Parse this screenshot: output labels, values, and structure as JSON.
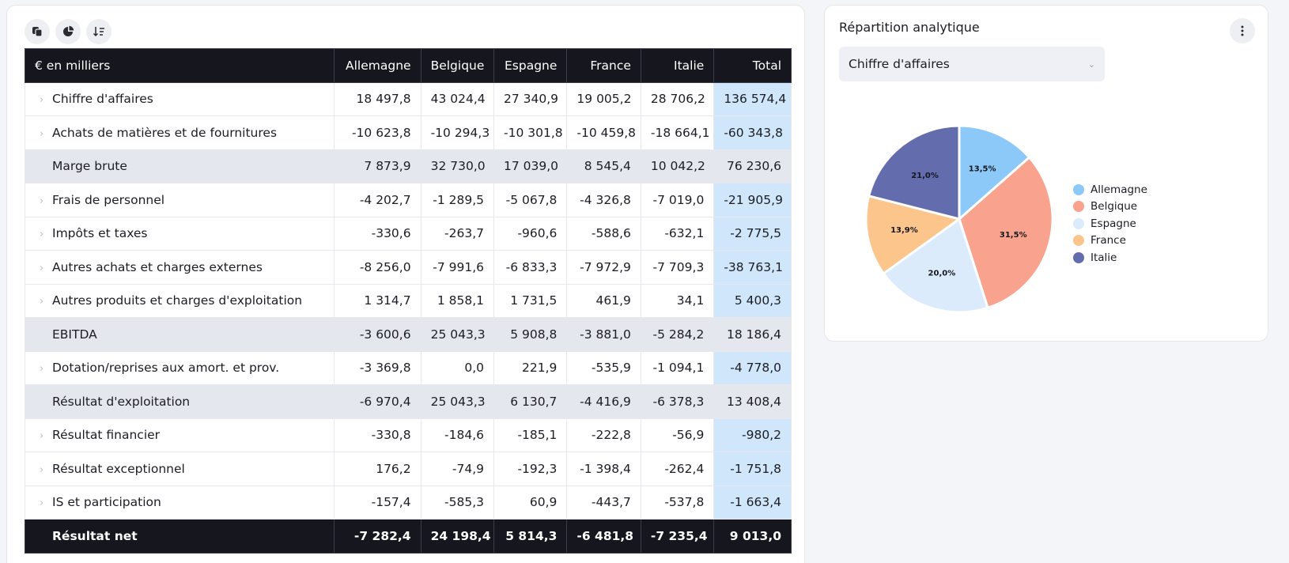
{
  "toolbar": {
    "icons": [
      "copy-icon",
      "pie-chart-icon",
      "sort-icon"
    ]
  },
  "table": {
    "header_label": "€ en milliers",
    "columns": [
      "Allemagne",
      "Belgique",
      "Espagne",
      "France",
      "Italie",
      "Total"
    ],
    "rows": [
      {
        "label": "Chiffre d'affaires",
        "kind": "row",
        "values": [
          "18 497,8",
          "43 024,4",
          "27 340,9",
          "19 005,2",
          "28 706,2",
          "136 574,4"
        ]
      },
      {
        "label": "Achats de matières et de fournitures",
        "kind": "row",
        "values": [
          "-10 623,8",
          "-10 294,3",
          "-10 301,8",
          "-10 459,8",
          "-18 664,1",
          "-60 343,8"
        ]
      },
      {
        "label": "Marge brute",
        "kind": "subtotal",
        "values": [
          "7 873,9",
          "32 730,0",
          "17 039,0",
          "8 545,4",
          "10 042,2",
          "76 230,6"
        ]
      },
      {
        "label": "Frais de personnel",
        "kind": "row",
        "values": [
          "-4 202,7",
          "-1 289,5",
          "-5 067,8",
          "-4 326,8",
          "-7 019,0",
          "-21 905,9"
        ]
      },
      {
        "label": "Impôts et taxes",
        "kind": "row",
        "values": [
          "-330,6",
          "-263,7",
          "-960,6",
          "-588,6",
          "-632,1",
          "-2 775,5"
        ]
      },
      {
        "label": "Autres achats et charges externes",
        "kind": "row",
        "values": [
          "-8 256,0",
          "-7 991,6",
          "-6 833,3",
          "-7 972,9",
          "-7 709,3",
          "-38 763,1"
        ]
      },
      {
        "label": "Autres produits et charges d'exploitation",
        "kind": "row",
        "values": [
          "1 314,7",
          "1 858,1",
          "1 731,5",
          "461,9",
          "34,1",
          "5 400,3"
        ]
      },
      {
        "label": "EBITDA",
        "kind": "subtotal",
        "values": [
          "-3 600,6",
          "25 043,3",
          "5 908,8",
          "-3 881,0",
          "-5 284,2",
          "18 186,4"
        ]
      },
      {
        "label": "Dotation/reprises aux amort. et prov.",
        "kind": "row",
        "values": [
          "-3 369,8",
          "0,0",
          "221,9",
          "-535,9",
          "-1 094,1",
          "-4 778,0"
        ]
      },
      {
        "label": "Résultat d'exploitation",
        "kind": "subtotal",
        "values": [
          "-6 970,4",
          "25 043,3",
          "6 130,7",
          "-4 416,9",
          "-6 378,3",
          "13 408,4"
        ]
      },
      {
        "label": "Résultat financier",
        "kind": "row",
        "values": [
          "-330,8",
          "-184,6",
          "-185,1",
          "-222,8",
          "-56,9",
          "-980,2"
        ]
      },
      {
        "label": "Résultat exceptionnel",
        "kind": "row",
        "values": [
          "176,2",
          "-74,9",
          "-192,3",
          "-1 398,4",
          "-262,4",
          "-1 751,8"
        ]
      },
      {
        "label": "IS et participation",
        "kind": "row",
        "values": [
          "-157,4",
          "-585,3",
          "60,9",
          "-443,7",
          "-537,8",
          "-1 663,4"
        ]
      },
      {
        "label": "Résultat net",
        "kind": "final",
        "values": [
          "-7 282,4",
          "24 198,4",
          "5 814,3",
          "-6 481,8",
          "-7 235,4",
          "9 013,0"
        ]
      }
    ]
  },
  "panel": {
    "title": "Répartition analytique",
    "select_value": "Chiffre d'affaires"
  },
  "chart_data": {
    "type": "pie",
    "title": "Répartition analytique — Chiffre d'affaires",
    "legend_position": "right",
    "slices": [
      {
        "name": "Allemagne",
        "value": 13.5,
        "label": "13,5%",
        "color": "#8cc8f8"
      },
      {
        "name": "Belgique",
        "value": 31.5,
        "label": "31,5%",
        "color": "#f9a38e"
      },
      {
        "name": "Espagne",
        "value": 20.0,
        "label": "20,0%",
        "color": "#dbebfc"
      },
      {
        "name": "France",
        "value": 13.9,
        "label": "13,9%",
        "color": "#fbc58c"
      },
      {
        "name": "Italie",
        "value": 21.0,
        "label": "21,0%",
        "color": "#636cad"
      }
    ]
  }
}
